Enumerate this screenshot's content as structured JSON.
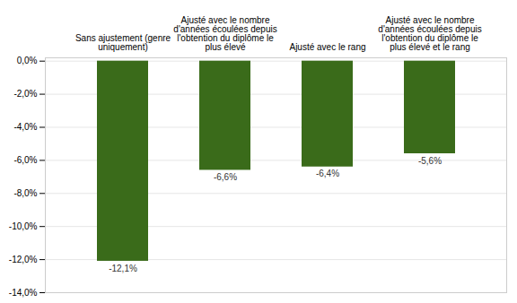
{
  "chart_data": {
    "type": "bar",
    "categories": [
      "Sans ajustement (genre\nuniquement)",
      "Ajusté avec le nombre\nd'années écoulées depuis\nl'obtention du diplôme le\nplus élevé",
      "Ajusté avec le rang",
      "Ajusté avec le nombre\nd'années écoulées depuis\nl'obtention du diplôme le\nplus élevé et le rang"
    ],
    "values": [
      -12.1,
      -6.6,
      -6.4,
      -5.6
    ],
    "value_labels": [
      "-12,1%",
      "-6,6%",
      "-6,4%",
      "-5,6%"
    ],
    "color": "#3a6b1a",
    "ylim": [
      -14.0,
      0.2
    ],
    "yticks": [
      {
        "value": 0.0,
        "label": "0,0%"
      },
      {
        "value": -2.0,
        "label": "-2,0%"
      },
      {
        "value": -4.0,
        "label": "-4,0%"
      },
      {
        "value": -6.0,
        "label": "-6,0%"
      },
      {
        "value": -8.0,
        "label": "-8,0%"
      },
      {
        "value": -10.0,
        "label": "-10,0%"
      },
      {
        "value": -12.0,
        "label": "-12,0%"
      },
      {
        "value": -14.0,
        "label": "-14,0%"
      }
    ],
    "grid": true,
    "data_labels": true
  }
}
